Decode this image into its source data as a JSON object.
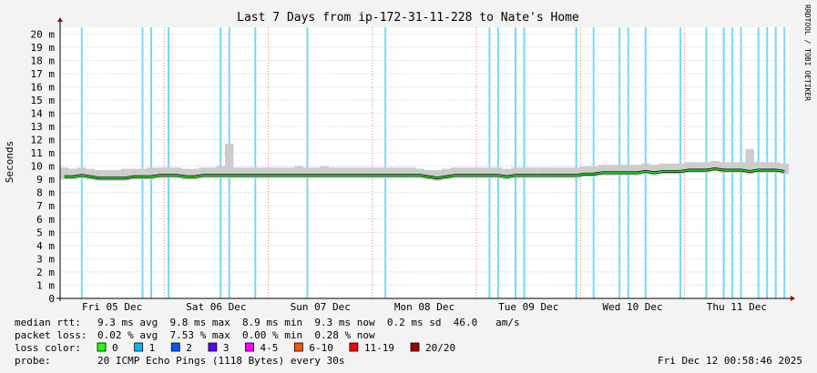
{
  "chart_data": {
    "type": "smokeping",
    "title": "Last 7 Days from ip-172-31-11-228 to Nate's Home",
    "y_label": "Seconds",
    "side_text": "RRDTOOL / TOBI OETIKER",
    "ylim": [
      0,
      0.0205
    ],
    "yticks": [
      {
        "value": 0,
        "label": "0"
      },
      {
        "value": 0.001,
        "label": "1 m"
      },
      {
        "value": 0.002,
        "label": "2 m"
      },
      {
        "value": 0.003,
        "label": "3 m"
      },
      {
        "value": 0.004,
        "label": "4 m"
      },
      {
        "value": 0.005,
        "label": "5 m"
      },
      {
        "value": 0.006,
        "label": "6 m"
      },
      {
        "value": 0.007,
        "label": "7 m"
      },
      {
        "value": 0.008,
        "label": "8 m"
      },
      {
        "value": 0.009,
        "label": "9 m"
      },
      {
        "value": 0.01,
        "label": "10 m"
      },
      {
        "value": 0.011,
        "label": "11 m"
      },
      {
        "value": 0.012,
        "label": "12 m"
      },
      {
        "value": 0.013,
        "label": "13 m"
      },
      {
        "value": 0.014,
        "label": "14 m"
      },
      {
        "value": 0.015,
        "label": "15 m"
      },
      {
        "value": 0.016,
        "label": "16 m"
      },
      {
        "value": 0.017,
        "label": "17 m"
      },
      {
        "value": 0.018,
        "label": "18 m"
      },
      {
        "value": 0.019,
        "label": "19 m"
      },
      {
        "value": 0.02,
        "label": "20 m"
      }
    ],
    "grid": true,
    "categories": [
      "Fri 05 Dec",
      "Sat 06 Dec",
      "Sun 07 Dec",
      "Mon 08 Dec",
      "Tue 09 Dec",
      "Wed 10 Dec",
      "Thu 11 Dec"
    ],
    "median": {
      "color": "#20e020",
      "values": [
        0.0092,
        0.0092,
        0.0093,
        0.0092,
        0.0091,
        0.0091,
        0.0091,
        0.0091,
        0.0092,
        0.0092,
        0.0092,
        0.0093,
        0.0093,
        0.0093,
        0.0092,
        0.0092,
        0.0093,
        0.0093,
        0.0093,
        0.0093,
        0.0093,
        0.0093,
        0.0093,
        0.0093,
        0.0093,
        0.0093,
        0.0093,
        0.0093,
        0.0093,
        0.0093,
        0.0093,
        0.0093,
        0.0093,
        0.0093,
        0.0093,
        0.0093,
        0.0093,
        0.0093,
        0.0093,
        0.0093,
        0.0093,
        0.0093,
        0.0092,
        0.0091,
        0.0092,
        0.0093,
        0.0093,
        0.0093,
        0.0093,
        0.0093,
        0.0093,
        0.0092,
        0.0093,
        0.0093,
        0.0093,
        0.0093,
        0.0093,
        0.0093,
        0.0093,
        0.0093,
        0.0094,
        0.0094,
        0.0095,
        0.0095,
        0.0095,
        0.0095,
        0.0095,
        0.0096,
        0.0095,
        0.0096,
        0.0096,
        0.0096,
        0.0097,
        0.0097,
        0.0097,
        0.0098,
        0.0097,
        0.0097,
        0.0097,
        0.0096,
        0.0097,
        0.0097,
        0.0097,
        0.0096
      ]
    },
    "smoke": {
      "color": "#cccccc",
      "values": [
        0.0099,
        0.0098,
        0.0099,
        0.0098,
        0.0097,
        0.0097,
        0.0097,
        0.0098,
        0.0098,
        0.0098,
        0.0099,
        0.0099,
        0.0099,
        0.0099,
        0.0098,
        0.0098,
        0.0099,
        0.0099,
        0.01,
        0.0117,
        0.0099,
        0.0099,
        0.0099,
        0.0099,
        0.0099,
        0.0099,
        0.0099,
        0.01,
        0.0099,
        0.0099,
        0.01,
        0.0099,
        0.0099,
        0.0099,
        0.0099,
        0.0099,
        0.0099,
        0.0099,
        0.0099,
        0.0099,
        0.0099,
        0.0098,
        0.0097,
        0.0097,
        0.0098,
        0.0099,
        0.0099,
        0.0099,
        0.0099,
        0.0099,
        0.0099,
        0.0098,
        0.0099,
        0.0099,
        0.0099,
        0.0099,
        0.0099,
        0.0099,
        0.0099,
        0.0099,
        0.01,
        0.01,
        0.0101,
        0.0101,
        0.0101,
        0.0101,
        0.0101,
        0.0102,
        0.0101,
        0.0102,
        0.0102,
        0.0102,
        0.0103,
        0.0103,
        0.0103,
        0.0104,
        0.0103,
        0.0103,
        0.0103,
        0.0113,
        0.0103,
        0.0103,
        0.0103,
        0.0102
      ]
    },
    "loss": {
      "values": [
        0,
        0,
        1,
        0,
        0,
        0,
        0,
        0,
        0,
        1,
        1,
        0,
        1,
        0,
        0,
        0,
        0,
        0,
        1,
        1,
        0,
        0,
        1,
        0,
        0,
        0,
        0,
        0,
        1,
        0,
        0,
        0,
        0,
        0,
        0,
        0,
        0,
        1,
        0,
        0,
        0,
        0,
        0,
        0,
        0,
        0,
        0,
        0,
        0,
        1,
        1,
        0,
        1,
        1,
        0,
        0,
        0,
        0,
        0,
        1,
        0,
        1,
        0,
        0,
        1,
        1,
        0,
        1,
        0,
        0,
        0,
        1,
        0,
        0,
        1,
        0,
        1,
        1,
        1,
        0,
        1,
        1,
        1,
        1
      ]
    },
    "stats": [
      {
        "label": "median rtt:",
        "text": "9.3 ms avg  9.8 ms max  8.9 ms min  9.3 ms now  0.2 ms sd  46.0   am/s"
      },
      {
        "label": "packet loss:",
        "text": "0.02 % avg  7.53 % max  0.00 % min  0.28 % now"
      }
    ],
    "loss_legend": {
      "label": "loss color:",
      "items": [
        {
          "name": "0",
          "color": "#26ff00"
        },
        {
          "name": "1",
          "color": "#00b8ff"
        },
        {
          "name": "2",
          "color": "#0059ff"
        },
        {
          "name": "3",
          "color": "#5e00ff"
        },
        {
          "name": "4-5",
          "color": "#ff00ff"
        },
        {
          "name": "6-10",
          "color": "#ff5500"
        },
        {
          "name": "11-19",
          "color": "#ff0000"
        },
        {
          "name": "20/20",
          "color": "#a00000"
        }
      ]
    },
    "probe": {
      "label": "probe:",
      "text": "20 ICMP Echo Pings (1118 Bytes) every 30s"
    },
    "timestamp": "Fri Dec 12 00:58:46 2025"
  }
}
